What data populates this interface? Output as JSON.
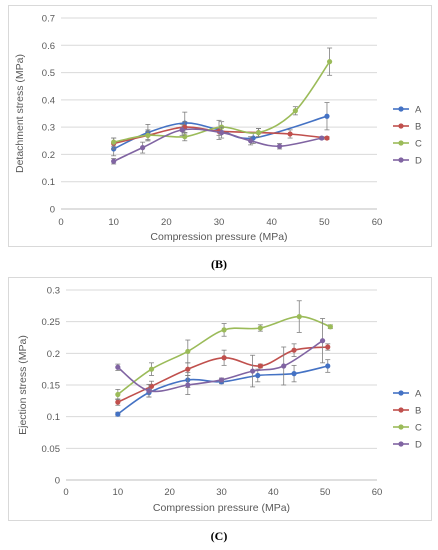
{
  "captions": {
    "b": "(B)",
    "c": "(C)"
  },
  "colors": {
    "A": "#4472c4",
    "B": "#c0504d",
    "C": "#9bbb59",
    "D": "#8064a2",
    "grid": "#d9d9d9",
    "axis": "#bfbfbf"
  },
  "chart_data": [
    {
      "id": "b",
      "type": "scatter",
      "title": "",
      "xlabel": "Compression pressure (MPa)",
      "ylabel": "Detachment stress (MPa)",
      "xlim": [
        0,
        60
      ],
      "ylim": [
        0,
        0.7
      ],
      "xticks": [
        0,
        10,
        20,
        30,
        40,
        50,
        60
      ],
      "yticks": [
        0,
        0.1,
        0.2,
        0.3,
        0.4,
        0.5,
        0.6,
        0.7
      ],
      "xtick_labels": [
        "0",
        "10",
        "20",
        "30",
        "40",
        "50",
        "60"
      ],
      "ytick_labels": [
        "0",
        "0.1",
        "0.2",
        "0.3",
        "0.4",
        "0.5",
        "0.6",
        "0.7"
      ],
      "grid": "horizontal",
      "legend": "right",
      "series": [
        {
          "name": "A",
          "x": [
            10,
            16.5,
            23.5,
            30,
            36.5,
            50.5
          ],
          "y": [
            0.22,
            0.28,
            0.315,
            0.29,
            0.26,
            0.34
          ],
          "err": [
            0.025,
            0.03,
            0.04,
            0.035,
            0.02,
            0.05
          ]
        },
        {
          "name": "B",
          "x": [
            10,
            16.5,
            23.5,
            30,
            37.5,
            43.5,
            50.5
          ],
          "y": [
            0.24,
            0.27,
            0.3,
            0.285,
            0.28,
            0.275,
            0.26
          ],
          "err": [
            0.02,
            0.02,
            0.02,
            0.015,
            0.015,
            0.015,
            0.005
          ]
        },
        {
          "name": "C",
          "x": [
            10,
            16.5,
            23.5,
            30.5,
            37.5,
            44.5,
            51
          ],
          "y": [
            0.245,
            0.27,
            0.265,
            0.3,
            0.28,
            0.36,
            0.54
          ],
          "err": [
            0.015,
            0.015,
            0.015,
            0.02,
            0.015,
            0.015,
            0.05
          ]
        },
        {
          "name": "D",
          "x": [
            10,
            15.5,
            23,
            30.5,
            36,
            41.5,
            49.5
          ],
          "y": [
            0.175,
            0.225,
            0.29,
            0.28,
            0.25,
            0.23,
            0.26
          ],
          "err": [
            0.01,
            0.02,
            0.02,
            0.02,
            0.015,
            0.01,
            0.005
          ]
        }
      ]
    },
    {
      "id": "c",
      "type": "scatter",
      "title": "",
      "xlabel": "Compression pressure (MPa)",
      "ylabel": "Ejection stress (MPa)",
      "xlim": [
        0,
        60
      ],
      "ylim": [
        0,
        0.3
      ],
      "xticks": [
        0,
        10,
        20,
        30,
        40,
        50,
        60
      ],
      "yticks": [
        0,
        0.05,
        0.1,
        0.15,
        0.2,
        0.25,
        0.3
      ],
      "xtick_labels": [
        "0",
        "10",
        "20",
        "30",
        "40",
        "50",
        "60"
      ],
      "ytick_labels": [
        "0",
        "0.05",
        "0.1",
        "0.15",
        "0.2",
        "0.25",
        "0.3"
      ],
      "grid": "horizontal",
      "legend": "right",
      "series": [
        {
          "name": "A",
          "x": [
            10,
            16,
            23.5,
            30,
            37,
            44,
            50.5
          ],
          "y": [
            0.104,
            0.138,
            0.158,
            0.155,
            0.165,
            0.168,
            0.18
          ],
          "err": [
            0.003,
            0.007,
            0.012,
            0.003,
            0.01,
            0.013,
            0.01
          ]
        },
        {
          "name": "B",
          "x": [
            10,
            16.5,
            23.5,
            30.5,
            37.5,
            44,
            50.5
          ],
          "y": [
            0.123,
            0.148,
            0.175,
            0.193,
            0.18,
            0.205,
            0.21
          ],
          "err": [
            0.005,
            0.008,
            0.01,
            0.012,
            0.003,
            0.01,
            0.005
          ]
        },
        {
          "name": "C",
          "x": [
            10,
            16.5,
            23.5,
            30.5,
            37.5,
            45,
            51
          ],
          "y": [
            0.135,
            0.175,
            0.203,
            0.237,
            0.24,
            0.258,
            0.242
          ],
          "err": [
            0.008,
            0.01,
            0.018,
            0.01,
            0.005,
            0.025,
            0.003
          ]
        },
        {
          "name": "D",
          "x": [
            10,
            16,
            23.5,
            30,
            36,
            42,
            49.5
          ],
          "y": [
            0.178,
            0.141,
            0.15,
            0.158,
            0.172,
            0.18,
            0.22
          ],
          "err": [
            0.005,
            0.01,
            0.015,
            0.003,
            0.025,
            0.03,
            0.035
          ]
        }
      ]
    }
  ]
}
